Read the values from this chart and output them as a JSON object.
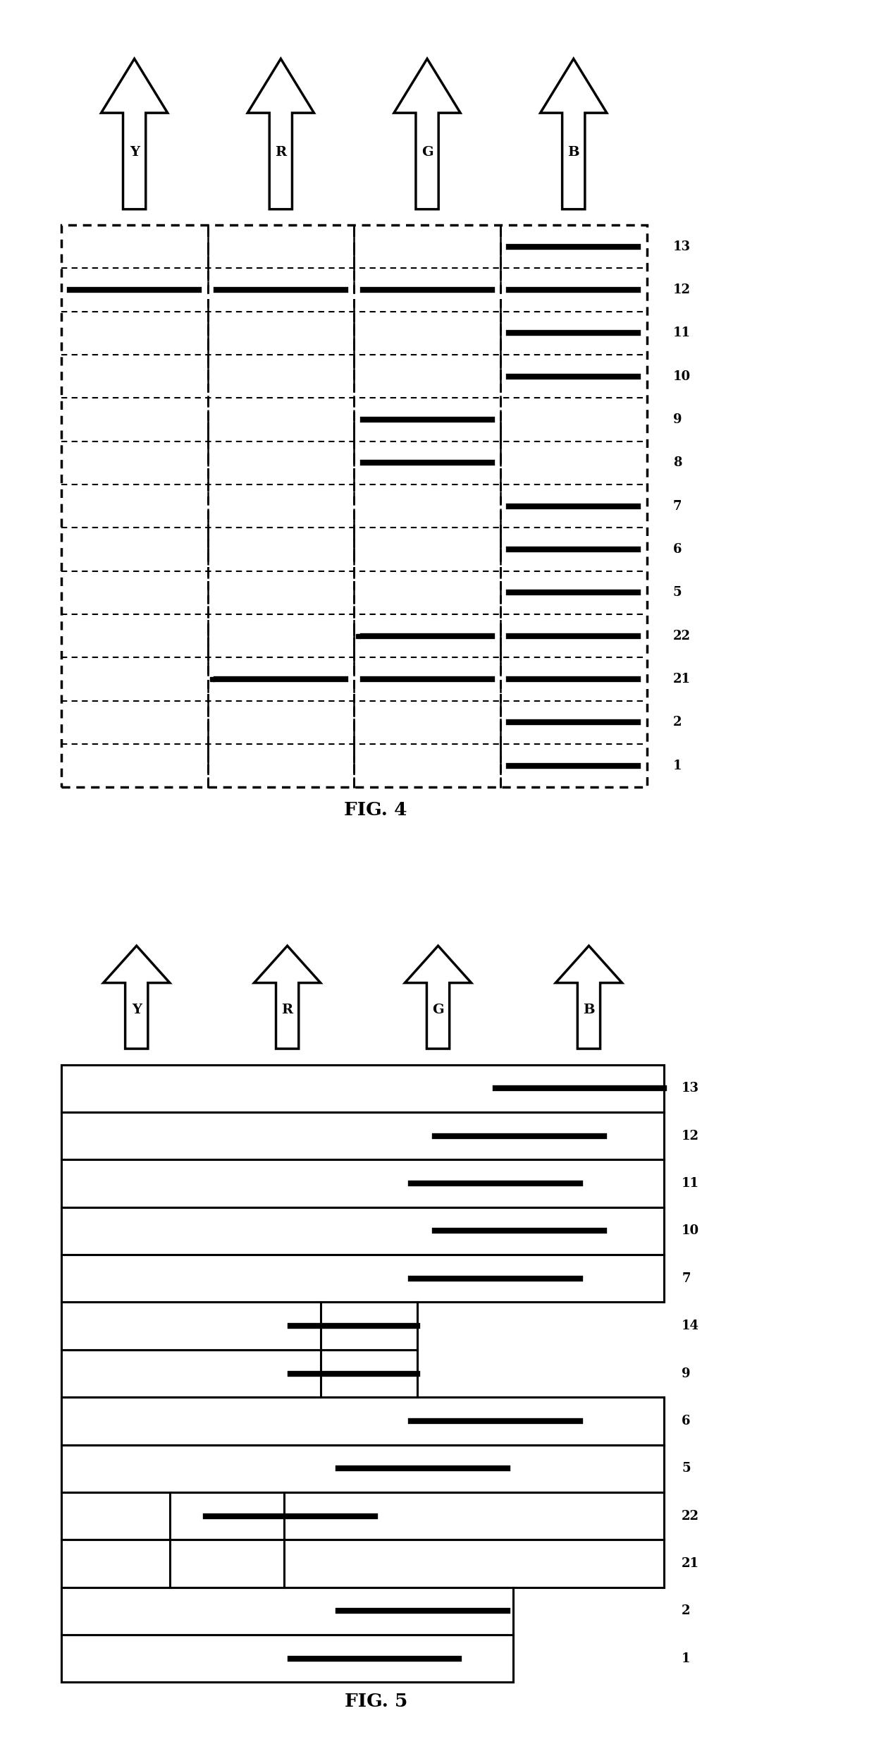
{
  "fig4_title": "FIG. 4",
  "fig5_title": "FIG. 5",
  "arrow_labels": [
    "Y",
    "R",
    "G",
    "B"
  ],
  "fig4": {
    "row_labels": [
      13,
      12,
      11,
      10,
      9,
      8,
      7,
      6,
      5,
      22,
      21,
      2,
      1
    ],
    "thick_cols": {
      "13": [
        3
      ],
      "12": [
        0,
        1,
        2,
        3
      ],
      "11": [
        3
      ],
      "10": [
        3
      ],
      "9": [
        2
      ],
      "8": [
        2
      ],
      "7": [
        3
      ],
      "6": [
        3
      ],
      "5": [
        3
      ],
      "22": [
        2,
        3
      ],
      "21": [
        1,
        2,
        3
      ],
      "2": [
        3
      ],
      "1": [
        3
      ]
    }
  },
  "fig5": {
    "row_labels": [
      13,
      12,
      11,
      10,
      7,
      14,
      9,
      6,
      5,
      22,
      21,
      2,
      1
    ],
    "layer_rights": {
      "13": 1.0,
      "12": 1.0,
      "11": 1.0,
      "10": 1.0,
      "7": 1.0,
      "14": 0.59,
      "9": 0.59,
      "6": 1.0,
      "5": 1.0,
      "22": 1.0,
      "21": 1.0,
      "2": 0.75,
      "1": 0.75
    },
    "thick_segs_norm": {
      "13": [
        [
          0.72,
          1.0
        ]
      ],
      "12": [
        [
          0.62,
          0.9
        ]
      ],
      "11": [
        [
          0.58,
          0.86
        ]
      ],
      "10": [
        [
          0.62,
          0.9
        ]
      ],
      "7": [
        [
          0.58,
          0.86
        ]
      ],
      "14": [
        [
          0.38,
          0.59
        ]
      ],
      "9": [
        [
          0.38,
          0.59
        ]
      ],
      "6": [
        [
          0.58,
          0.86
        ]
      ],
      "5": [
        [
          0.46,
          0.74
        ]
      ],
      "22": [
        [
          0.24,
          0.52
        ]
      ],
      "21": [],
      "2": [
        [
          0.46,
          0.74
        ]
      ],
      "1": [
        [
          0.38,
          0.66
        ]
      ]
    },
    "dividers_14_9": [
      0.43
    ],
    "dividers_22_21": [
      0.18,
      0.37
    ]
  }
}
